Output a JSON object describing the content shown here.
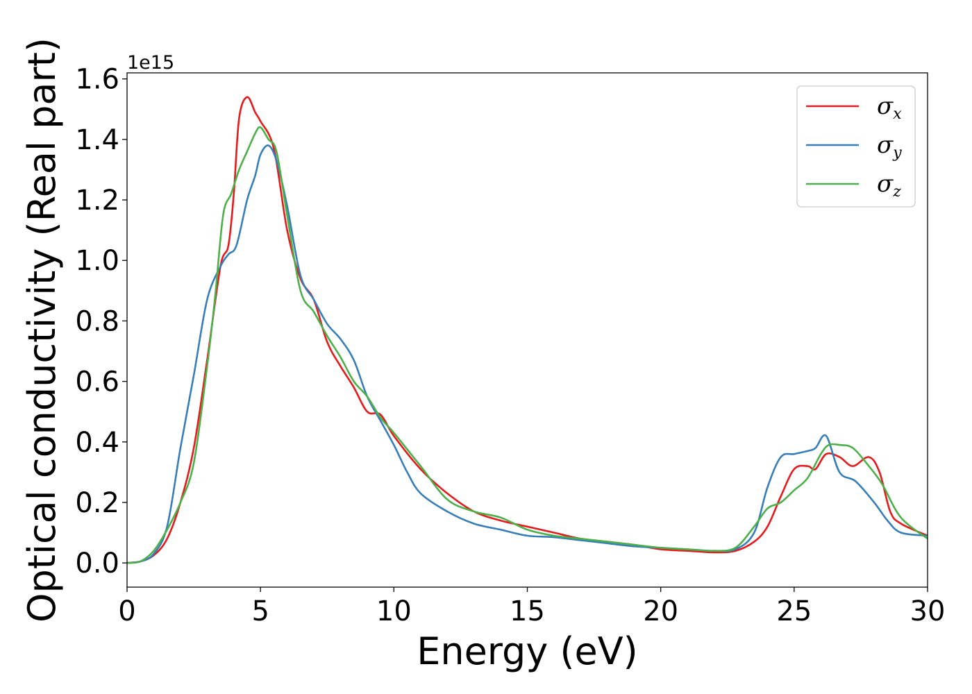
{
  "chart_data": {
    "type": "line",
    "xlabel": "Energy (eV)",
    "ylabel": "Optical conductivity (Real part)",
    "y_offset_text": "1e15",
    "xlim": [
      0,
      30
    ],
    "ylim": [
      -0.08,
      1.62
    ],
    "y_scale_factor": 1000000000000000.0,
    "x_ticks": [
      0,
      5,
      10,
      15,
      20,
      25,
      30
    ],
    "x_tick_labels": [
      "0",
      "5",
      "10",
      "15",
      "20",
      "25",
      "30"
    ],
    "y_ticks": [
      0.0,
      0.2,
      0.4,
      0.6,
      0.8,
      1.0,
      1.2,
      1.4,
      1.6
    ],
    "y_tick_labels": [
      "0.0",
      "0.2",
      "0.4",
      "0.6",
      "0.8",
      "1.0",
      "1.2",
      "1.4",
      "1.6"
    ],
    "grid": false,
    "legend_position": "top-right",
    "series": [
      {
        "name": "σx",
        "symbol": "σ",
        "subscript": "x",
        "color": "#e41a1c",
        "x": [
          0,
          0.5,
          1,
          1.5,
          2,
          2.5,
          3,
          3.5,
          3.8,
          4,
          4.2,
          4.5,
          4.8,
          5,
          5.5,
          6,
          6.5,
          7,
          7.5,
          8,
          8.5,
          9,
          9.5,
          10,
          11,
          12,
          13,
          14,
          15,
          16,
          17,
          18,
          19,
          20,
          21,
          22,
          22.8,
          23.5,
          24,
          24.5,
          25,
          25.5,
          25.8,
          26.2,
          26.7,
          27.2,
          27.8,
          28.2,
          28.6,
          29,
          30
        ],
        "y": [
          0,
          0.005,
          0.025,
          0.08,
          0.2,
          0.38,
          0.67,
          0.98,
          1.05,
          1.22,
          1.47,
          1.54,
          1.49,
          1.46,
          1.37,
          1.1,
          0.94,
          0.87,
          0.73,
          0.65,
          0.58,
          0.5,
          0.49,
          0.42,
          0.31,
          0.23,
          0.17,
          0.14,
          0.12,
          0.1,
          0.08,
          0.07,
          0.06,
          0.045,
          0.04,
          0.035,
          0.04,
          0.07,
          0.12,
          0.22,
          0.31,
          0.32,
          0.31,
          0.36,
          0.35,
          0.32,
          0.35,
          0.3,
          0.17,
          0.13,
          0.09
        ]
      },
      {
        "name": "σy",
        "symbol": "σ",
        "subscript": "y",
        "color": "#377eb8",
        "x": [
          0,
          0.5,
          1,
          1.5,
          2,
          2.5,
          3,
          3.5,
          3.8,
          4.1,
          4.5,
          4.8,
          5,
          5.3,
          5.6,
          6,
          6.5,
          7,
          7.5,
          8,
          8.5,
          9,
          9.5,
          10,
          10.5,
          11,
          12,
          13,
          14,
          15,
          16,
          17,
          18,
          19,
          20,
          21,
          22,
          22.8,
          23.5,
          24,
          24.5,
          25,
          25.5,
          25.8,
          26.2,
          26.7,
          27.3,
          28,
          28.5,
          29,
          30
        ],
        "y": [
          0,
          0.005,
          0.03,
          0.12,
          0.38,
          0.62,
          0.87,
          0.98,
          1.02,
          1.05,
          1.2,
          1.28,
          1.35,
          1.38,
          1.33,
          1.18,
          0.95,
          0.87,
          0.79,
          0.74,
          0.67,
          0.55,
          0.47,
          0.39,
          0.3,
          0.23,
          0.17,
          0.13,
          0.11,
          0.09,
          0.085,
          0.075,
          0.065,
          0.055,
          0.05,
          0.045,
          0.04,
          0.045,
          0.1,
          0.25,
          0.35,
          0.36,
          0.37,
          0.38,
          0.42,
          0.3,
          0.27,
          0.2,
          0.14,
          0.1,
          0.09
        ]
      },
      {
        "name": "σz",
        "symbol": "σ",
        "subscript": "z",
        "color": "#4daf4a",
        "x": [
          0,
          0.5,
          1,
          1.5,
          2,
          2.5,
          3,
          3.3,
          3.6,
          3.9,
          4.2,
          4.5,
          4.8,
          5,
          5.3,
          5.6,
          6,
          6.5,
          7,
          7.5,
          8,
          8.5,
          9,
          9.5,
          10,
          11,
          12,
          13,
          14,
          15,
          16,
          17,
          18,
          19,
          20,
          21,
          22,
          22.8,
          23.5,
          24,
          24.5,
          25,
          25.5,
          26,
          26.3,
          26.7,
          27.2,
          27.8,
          28.3,
          29,
          30
        ],
        "y": [
          0,
          0.005,
          0.04,
          0.11,
          0.2,
          0.33,
          0.65,
          0.88,
          1.15,
          1.22,
          1.3,
          1.36,
          1.42,
          1.44,
          1.4,
          1.36,
          1.15,
          0.9,
          0.83,
          0.75,
          0.68,
          0.6,
          0.55,
          0.48,
          0.43,
          0.32,
          0.21,
          0.17,
          0.15,
          0.11,
          0.09,
          0.08,
          0.07,
          0.06,
          0.05,
          0.045,
          0.04,
          0.05,
          0.12,
          0.18,
          0.2,
          0.24,
          0.28,
          0.36,
          0.39,
          0.39,
          0.38,
          0.32,
          0.26,
          0.15,
          0.08
        ]
      }
    ]
  }
}
